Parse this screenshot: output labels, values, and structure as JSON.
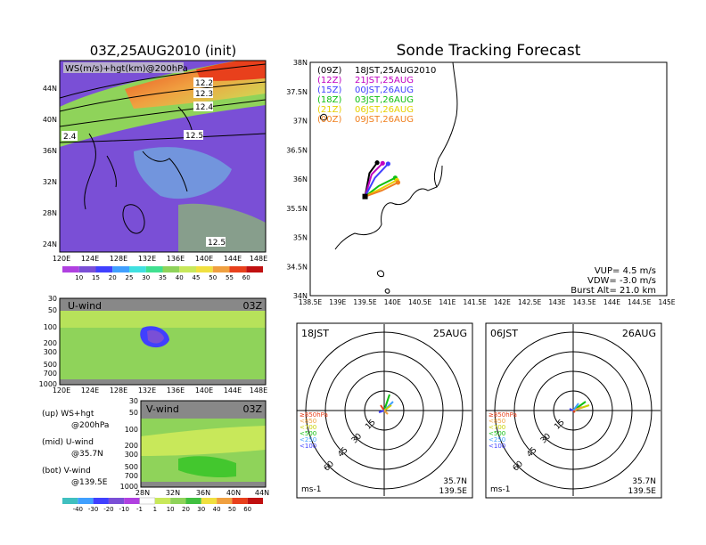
{
  "left_title": "03Z,25AUG2010 (init)",
  "right_title": "Sonde Tracking Forecast",
  "colors": {
    "bg_purple": "#7a4fd6",
    "band_green": "#8fd35a",
    "band_yellow": "#c8e85a",
    "band_orange": "#f0a040",
    "band_red": "#e8401c",
    "land_gray": "#888888",
    "track_black": "#000000",
    "track_magenta": "#c000c0",
    "track_blue": "#4040ff",
    "track_green": "#10c010",
    "track_yellow": "#e8d000",
    "track_orange": "#f08020"
  },
  "map_panel": {
    "label": "WS(m/s)+hgt(km)@200hPa",
    "lat_labels": [
      "44N",
      "40N",
      "36N",
      "32N",
      "28N",
      "24N"
    ],
    "lon_labels": [
      "120E",
      "124E",
      "128E",
      "132E",
      "136E",
      "140E",
      "144E",
      "148E"
    ],
    "contour_labels": [
      "12.2",
      "12.3",
      "12.4",
      "12.5",
      "12.5",
      "2.4"
    ],
    "colorbar": [
      "10",
      "15",
      "20",
      "25",
      "30",
      "35",
      "40",
      "45",
      "50",
      "55",
      "60"
    ]
  },
  "u_panel": {
    "label": "U-wind",
    "time": "03Z",
    "p_labels": [
      "30",
      "50",
      "100",
      "200",
      "300",
      "500",
      "700",
      "1000"
    ],
    "lon_labels": [
      "120E",
      "124E",
      "128E",
      "132E",
      "136E",
      "140E",
      "144E",
      "148E"
    ]
  },
  "v_panel": {
    "label": "V-wind",
    "time": "03Z",
    "p_labels": [
      "30",
      "50",
      "100",
      "200",
      "300",
      "500",
      "700",
      "1000"
    ],
    "lat_labels": [
      "28N",
      "32N",
      "36N",
      "40N",
      "44N"
    ]
  },
  "notes": [
    {
      "label": "(up) WS+hgt",
      "sub": "@200hPa"
    },
    {
      "label": "(mid) U-wind",
      "sub": "@35.7N"
    },
    {
      "label": "(bot) V-wind",
      "sub": "@139.5E"
    }
  ],
  "bottom_colorbar": [
    "-40",
    "-30",
    "-20",
    "-10",
    "-1",
    "1",
    "10",
    "20",
    "30",
    "40",
    "50",
    "60"
  ],
  "track_map": {
    "lat_labels": [
      "38N",
      "37.5N",
      "37N",
      "36.5N",
      "36N",
      "35.5N",
      "35N",
      "34.5N",
      "34N"
    ],
    "lon_labels": [
      "138.5E",
      "139E",
      "139.5E",
      "140E",
      "140.5E",
      "141E",
      "141.5E",
      "142E",
      "142.5E",
      "143E",
      "143.5E",
      "144E",
      "144.5E",
      "145E"
    ],
    "legend": [
      {
        "code": "(09Z)",
        "time": "18JST,25AUG2010",
        "color": "#000000"
      },
      {
        "code": "(12Z)",
        "time": "21JST,25AUG",
        "color": "#c000c0"
      },
      {
        "code": "(15Z)",
        "time": "00JST,26AUG",
        "color": "#4040ff"
      },
      {
        "code": "(18Z)",
        "time": "03JST,26AUG",
        "color": "#10c010"
      },
      {
        "code": "(21Z)",
        "time": "06JST,26AUG",
        "color": "#e8d000"
      },
      {
        "code": "(00Z)",
        "time": "09JST,26AUG",
        "color": "#f08020"
      }
    ],
    "params": [
      "VUP= 4.5 m/s",
      "VDW= -3.0 m/s",
      "Burst Alt= 21.0 km"
    ]
  },
  "chart_data": {
    "type": "scatter",
    "title": "Sonde Tracking Forecast",
    "xlabel": "",
    "ylabel": "",
    "xlim": [
      138.5,
      145
    ],
    "ylim": [
      34,
      38
    ],
    "launch": {
      "lon": 139.5,
      "lat": 35.7
    },
    "series": [
      {
        "name": "(09Z) 18JST,25AUG2010",
        "color": "#000000",
        "x": [
          139.5,
          139.58,
          139.72
        ],
        "y": [
          35.7,
          36.1,
          36.28
        ]
      },
      {
        "name": "(12Z) 21JST,25AUG",
        "color": "#c000c0",
        "x": [
          139.5,
          139.62,
          139.82
        ],
        "y": [
          35.7,
          36.08,
          36.27
        ]
      },
      {
        "name": "(15Z) 00JST,26AUG",
        "color": "#4040ff",
        "x": [
          139.5,
          139.68,
          139.92
        ],
        "y": [
          35.7,
          36.02,
          36.26
        ]
      },
      {
        "name": "(18Z) 03JST,26AUG",
        "color": "#10c010",
        "x": [
          139.5,
          139.75,
          140.05
        ],
        "y": [
          35.7,
          35.88,
          36.02
        ]
      },
      {
        "name": "(21Z) 06JST,26AUG",
        "color": "#e8d000",
        "x": [
          139.5,
          139.78,
          140.08
        ],
        "y": [
          35.7,
          35.83,
          35.98
        ]
      },
      {
        "name": "(00Z) 09JST,26AUG",
        "color": "#f08020",
        "x": [
          139.5,
          139.8,
          140.1
        ],
        "y": [
          35.7,
          35.8,
          35.94
        ]
      }
    ]
  },
  "polar_left": {
    "time": "18JST",
    "date": "25AUG",
    "ring_labels": [
      "15",
      "30",
      "45",
      "60"
    ],
    "levels": [
      "≥850hPa",
      "<850",
      "<700",
      "<500",
      "<250",
      "<100"
    ],
    "unit": "ms-1",
    "lat": "35.7N",
    "lon": "139.5E"
  },
  "polar_right": {
    "time": "06JST",
    "date": "26AUG",
    "ring_labels": [
      "15",
      "30",
      "45",
      "60"
    ],
    "levels": [
      "≥850hPa",
      "<850",
      "<700",
      "<500",
      "<250",
      "<100"
    ],
    "unit": "ms-1",
    "lat": "35.7N",
    "lon": "139.5E"
  }
}
